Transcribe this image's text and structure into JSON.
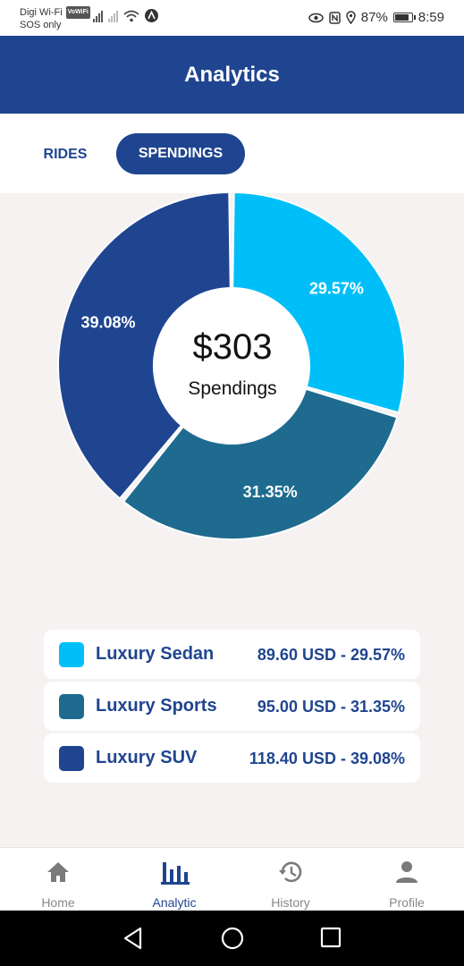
{
  "status_bar": {
    "carrier": "Digi Wi-Fi",
    "vowifi": "VoWiFi",
    "sos": "SOS only",
    "battery": "87%",
    "time": "8:59"
  },
  "header": {
    "title": "Analytics"
  },
  "tabs": {
    "rides": "RIDES",
    "spendings": "SPENDINGS"
  },
  "chart_data": {
    "type": "pie",
    "title": "",
    "center_value": "$303",
    "center_label": "Spendings",
    "slices": [
      {
        "name": "Luxury Sedan",
        "value": 29.57,
        "label": "29.57%",
        "color": "#00bff8"
      },
      {
        "name": "Luxury Sports",
        "value": 31.35,
        "label": "31.35%",
        "color": "#1e6b8f"
      },
      {
        "name": "Luxury SUV",
        "value": 39.08,
        "label": "39.08%",
        "color": "#1f4590"
      }
    ]
  },
  "legend": [
    {
      "name": "Luxury Sedan",
      "value": "89.60 USD - 29.57%",
      "color": "#00bff8"
    },
    {
      "name": "Luxury Sports",
      "value": "95.00 USD - 31.35%",
      "color": "#1e6b8f"
    },
    {
      "name": "Luxury SUV",
      "value": "118.40 USD - 39.08%",
      "color": "#1f4590"
    }
  ],
  "bottom_nav": {
    "home": "Home",
    "analytic": "Analytic",
    "history": "History",
    "profile": "Profile"
  },
  "colors": {
    "primary": "#1f4590",
    "accent": "#00bff8",
    "teal": "#1e6b8f",
    "background": "#f6f2f2"
  }
}
